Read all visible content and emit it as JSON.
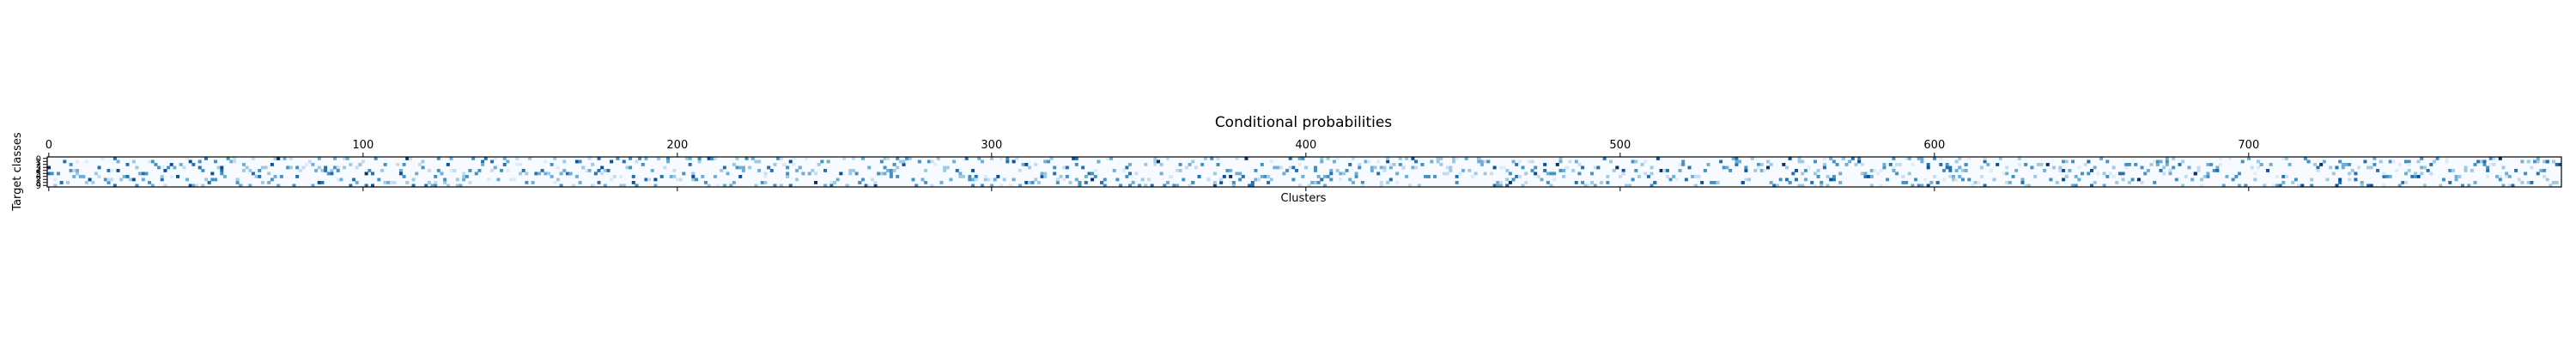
{
  "chart_data": {
    "type": "heatmap",
    "title": "Conditional probabilities",
    "xlabel": "Clusters",
    "ylabel": "Target classes",
    "x_ticks": [
      0,
      100,
      200,
      300,
      400,
      500,
      600,
      700
    ],
    "x_tick_labels": [
      "0",
      "100",
      "200",
      "300",
      "400",
      "500",
      "600",
      "700"
    ],
    "y_ticks": [
      0,
      1,
      2,
      3,
      4,
      5,
      6,
      7,
      8,
      9
    ],
    "y_tick_labels": [
      "0",
      "1",
      "2",
      "3",
      "4",
      "5",
      "6",
      "7",
      "8",
      "9"
    ],
    "n_clusters": 800,
    "n_classes": 10,
    "xlim": [
      -0.5,
      799.5
    ],
    "ylim": [
      9.5,
      -0.5
    ],
    "x_axis_position": "top",
    "colormap": "Blues",
    "value_range": [
      0,
      1
    ],
    "colors": {
      "low": "#f7fbff",
      "mid": "#6baed6",
      "high": "#08306b"
    },
    "grid": false,
    "legend": "none",
    "data_note": "800 x 10 cell values not individually legible; cells rendered with a deterministic pseudo-random pattern approximating the visible sparse distribution"
  }
}
